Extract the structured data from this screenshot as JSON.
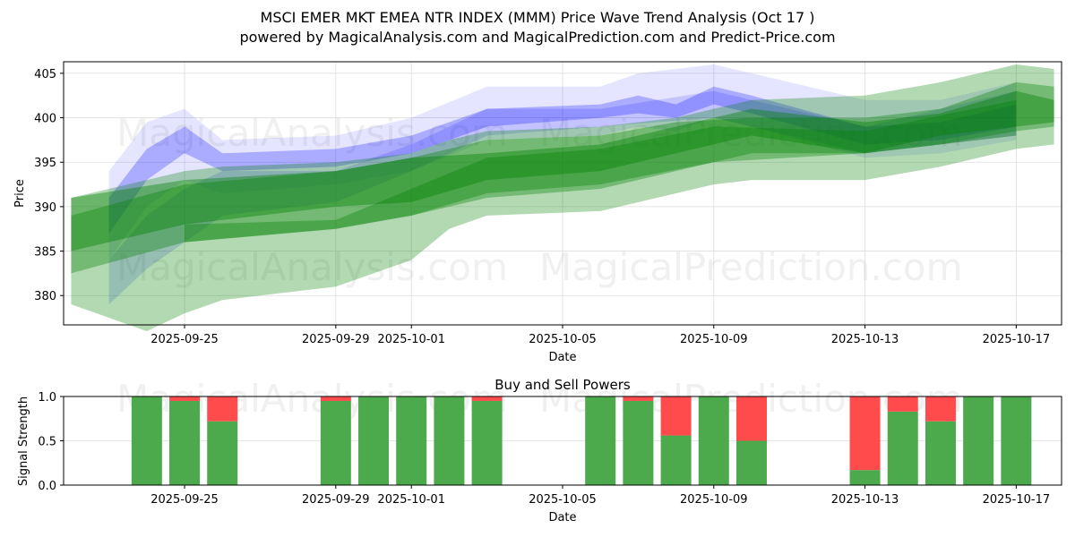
{
  "title_line1": "MSCI EMER MKT EMEA NTR INDEX (MMM) Price Wave Trend Analysis (Oct 17 )",
  "title_line2": "powered by MagicalAnalysis.com and MagicalPrediction.com and Predict-Price.com",
  "watermarks": [
    "MagicalAnalysis.com",
    "MagicalPrediction.com"
  ],
  "chart_data": [
    {
      "type": "area",
      "title": "",
      "xlabel": "Date",
      "ylabel": "Price",
      "xlim": [
        "2025-09-21.8",
        "2025-10-18.2"
      ],
      "ylim": [
        376.7,
        406.3
      ],
      "yticks": [
        380,
        385,
        390,
        395,
        400,
        405
      ],
      "xticks": [
        "2025-09-25",
        "2025-09-29",
        "2025-10-01",
        "2025-10-05",
        "2025-10-09",
        "2025-10-13",
        "2025-10-17"
      ],
      "grid": true,
      "bands": [
        {
          "color": "#0000ff",
          "opacity": 0.1,
          "points": [
            [
              "2025-09-23",
              384,
              394
            ],
            [
              "2025-09-24",
              390,
              399.5
            ],
            [
              "2025-09-25",
              393,
              401
            ],
            [
              "2025-09-26",
              391.5,
              397.5
            ],
            [
              "2025-09-29",
              392.5,
              398
            ],
            [
              "2025-10-01",
              394,
              400
            ],
            [
              "2025-10-03",
              397.5,
              403.5
            ],
            [
              "2025-10-06",
              398,
              403.5
            ],
            [
              "2025-10-07",
              399,
              405
            ],
            [
              "2025-10-08",
              398.5,
              405.5
            ],
            [
              "2025-10-09",
              400,
              406
            ],
            [
              "2025-10-10",
              399,
              405
            ],
            [
              "2025-10-13",
              395.5,
              402
            ],
            [
              "2025-10-15",
              396,
              402
            ],
            [
              "2025-10-17",
              397.5,
              404
            ]
          ]
        },
        {
          "color": "#0000ff",
          "opacity": 0.25,
          "points": [
            [
              "2025-09-23",
              387,
              391
            ],
            [
              "2025-09-24",
              393,
              396.5
            ],
            [
              "2025-09-25",
              396,
              399
            ],
            [
              "2025-09-26",
              394,
              396
            ],
            [
              "2025-09-29",
              394.5,
              396.5
            ],
            [
              "2025-10-01",
              396,
              398
            ],
            [
              "2025-10-03",
              399,
              401
            ],
            [
              "2025-10-06",
              400,
              401.5
            ],
            [
              "2025-10-07",
              400.5,
              402.5
            ],
            [
              "2025-10-08",
              400,
              401.5
            ],
            [
              "2025-10-09",
              401.5,
              403.5
            ],
            [
              "2025-10-10",
              400.5,
              402.5
            ],
            [
              "2025-10-13",
              397,
              399
            ],
            [
              "2025-10-15",
              397.5,
              399.5
            ],
            [
              "2025-10-17",
              399,
              401.5
            ]
          ]
        },
        {
          "color": "#0000ff",
          "opacity": 0.15,
          "points": [
            [
              "2025-09-23",
              379,
              384
            ],
            [
              "2025-09-24",
              383,
              389
            ],
            [
              "2025-09-25",
              386,
              392
            ],
            [
              "2025-09-26",
              389,
              394
            ],
            [
              "2025-09-29",
              390.5,
              394
            ],
            [
              "2025-10-01",
              394,
              397
            ],
            [
              "2025-10-03",
              398,
              401
            ],
            [
              "2025-10-06",
              399,
              401
            ],
            [
              "2025-10-09",
              400,
              403
            ],
            [
              "2025-10-13",
              396,
              399
            ],
            [
              "2025-10-17",
              398,
              403
            ]
          ]
        },
        {
          "color": "#008000",
          "opacity": 0.3,
          "points": [
            [
              "2025-09-22",
              379,
              391
            ],
            [
              "2025-09-24",
              376,
              393
            ],
            [
              "2025-09-25",
              378,
              394
            ],
            [
              "2025-09-26",
              379.5,
              394.5
            ],
            [
              "2025-09-29",
              381,
              395
            ],
            [
              "2025-10-01",
              384,
              396
            ],
            [
              "2025-10-02",
              387.5,
              397.5
            ],
            [
              "2025-10-03",
              389,
              398.5
            ],
            [
              "2025-10-06",
              389.5,
              399
            ],
            [
              "2025-10-08",
              391.5,
              400
            ],
            [
              "2025-10-09",
              392.5,
              401
            ],
            [
              "2025-10-10",
              393,
              402
            ],
            [
              "2025-10-13",
              393,
              402.5
            ],
            [
              "2025-10-15",
              394.5,
              404
            ],
            [
              "2025-10-17",
              396.5,
              406
            ],
            [
              "2025-10-18",
              397,
              405.5
            ]
          ]
        },
        {
          "color": "#008000",
          "opacity": 0.35,
          "points": [
            [
              "2025-09-22",
              382.5,
              389
            ],
            [
              "2025-09-25",
              386,
              392.5
            ],
            [
              "2025-09-29",
              387.5,
              394
            ],
            [
              "2025-10-01",
              389,
              395.5
            ],
            [
              "2025-10-03",
              391,
              397.5
            ],
            [
              "2025-10-06",
              392,
              398
            ],
            [
              "2025-10-08",
              394,
              399.5
            ],
            [
              "2025-10-10",
              396,
              400
            ],
            [
              "2025-10-13",
              396,
              400
            ],
            [
              "2025-10-15",
              397,
              401
            ],
            [
              "2025-10-17",
              398.5,
              404
            ],
            [
              "2025-10-18",
              399,
              403.5
            ]
          ]
        },
        {
          "color": "#008000",
          "opacity": 0.4,
          "points": [
            [
              "2025-09-22",
              385,
              391
            ],
            [
              "2025-09-25",
              388,
              393
            ],
            [
              "2025-09-29",
              390,
              394
            ],
            [
              "2025-10-01",
              390.5,
              395.5
            ],
            [
              "2025-10-03",
              393,
              396
            ],
            [
              "2025-10-06",
              394,
              397
            ],
            [
              "2025-10-08",
              396,
              399
            ],
            [
              "2025-10-10",
              398,
              401
            ],
            [
              "2025-10-13",
              396,
              399.5
            ],
            [
              "2025-10-15",
              398,
              400.5
            ],
            [
              "2025-10-17",
              399,
              403
            ],
            [
              "2025-10-18",
              399.5,
              402
            ]
          ]
        },
        {
          "color": "#008000",
          "opacity": 0.35,
          "points": [
            [
              "2025-09-25",
              386,
              388
            ],
            [
              "2025-09-29",
              387.5,
              388.5
            ],
            [
              "2025-10-01",
              389,
              392
            ],
            [
              "2025-10-03",
              391.5,
              395.5
            ],
            [
              "2025-10-06",
              392.5,
              396.5
            ],
            [
              "2025-10-09",
              395,
              399
            ],
            [
              "2025-10-13",
              396,
              398.5
            ],
            [
              "2025-10-17",
              398,
              402
            ]
          ]
        }
      ]
    },
    {
      "type": "bar",
      "title": "Buy and Sell Powers",
      "xlabel": "Date",
      "ylabel": "Signal Strength",
      "ylim": [
        0,
        1
      ],
      "yticks": [
        "0.0",
        "0.5",
        "1.0"
      ],
      "xticks": [
        "2025-09-25",
        "2025-09-29",
        "2025-10-01",
        "2025-10-05",
        "2025-10-09",
        "2025-10-13",
        "2025-10-17"
      ],
      "categories": [
        "2025-09-24",
        "2025-09-25",
        "2025-09-26",
        "2025-09-29",
        "2025-09-30",
        "2025-10-01",
        "2025-10-02",
        "2025-10-03",
        "2025-10-06",
        "2025-10-07",
        "2025-10-08",
        "2025-10-09",
        "2025-10-10",
        "2025-10-13",
        "2025-10-14",
        "2025-10-15",
        "2025-10-16",
        "2025-10-17"
      ],
      "series": [
        {
          "name": "Buy",
          "color": "#4caa4c",
          "values": [
            1,
            0.95,
            0.72,
            0.95,
            1,
            1,
            1,
            0.95,
            1,
            0.95,
            0.56,
            1,
            0.5,
            0.17,
            0.83,
            0.72,
            1,
            1
          ]
        },
        {
          "name": "Sell",
          "color": "#ff4b4b",
          "values": [
            0,
            0.05,
            0.28,
            0.05,
            0,
            0,
            0,
            0.05,
            0,
            0.05,
            0.44,
            0,
            0.5,
            0.83,
            0.17,
            0.28,
            0,
            0
          ]
        }
      ]
    }
  ]
}
